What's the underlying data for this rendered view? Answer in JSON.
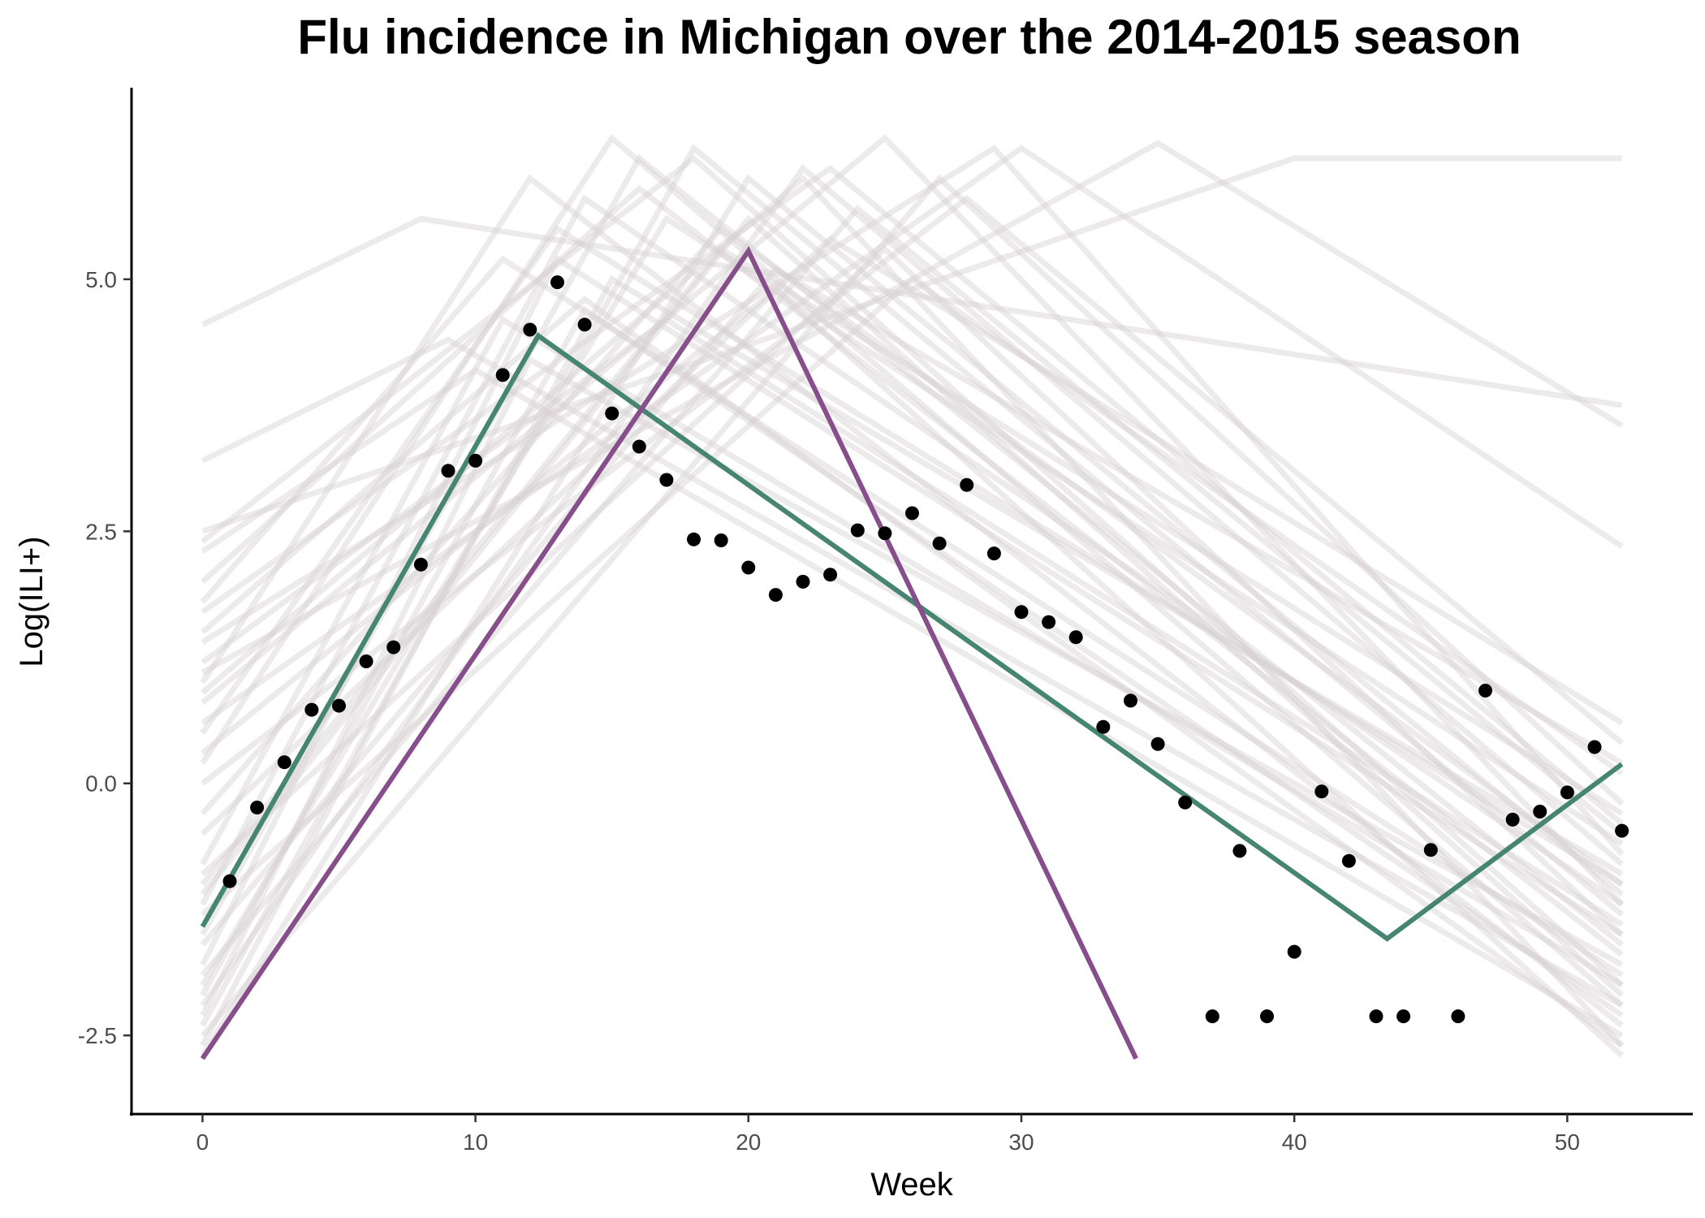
{
  "chart_data": {
    "type": "line",
    "title": "Flu incidence in Michigan over the 2014-2015 season",
    "xlabel": "Week",
    "ylabel": "Log(ILI+)",
    "xlim": [
      -2.6,
      54.6
    ],
    "ylim": [
      -3.28,
      6.9
    ],
    "x_ticks": [
      0,
      10,
      20,
      30,
      40,
      50
    ],
    "x_tick_labels": [
      "0",
      "10",
      "20",
      "30",
      "40",
      "50"
    ],
    "y_ticks": [
      -2.5,
      0,
      2.5,
      5
    ],
    "y_tick_labels": [
      "-2.5",
      "0.0",
      "2.5",
      "5.0"
    ],
    "grid": false,
    "legend": "none",
    "colors": {
      "observed": "#000000",
      "green_fit": "#458571",
      "purple_fit": "#874e8c",
      "samples": "#d8d0d3"
    },
    "observed": {
      "x": [
        1,
        2,
        3,
        4,
        5,
        6,
        7,
        8,
        9,
        10,
        11,
        12,
        13,
        14,
        15,
        16,
        17,
        18,
        19,
        20,
        21,
        22,
        23,
        24,
        25,
        26,
        27,
        28,
        29,
        30,
        31,
        32,
        33,
        34,
        35,
        36,
        37,
        38,
        39,
        40,
        41,
        42,
        43,
        44,
        45,
        46,
        47,
        48,
        49,
        50,
        51,
        52
      ],
      "y": [
        -0.97,
        -0.24,
        0.21,
        0.73,
        0.77,
        1.21,
        1.35,
        2.17,
        3.1,
        3.2,
        4.05,
        4.5,
        4.97,
        4.55,
        3.67,
        3.34,
        3.01,
        2.42,
        2.41,
        2.14,
        1.87,
        2.0,
        2.07,
        2.51,
        2.48,
        2.68,
        2.38,
        2.96,
        2.28,
        1.7,
        1.6,
        1.45,
        0.56,
        0.82,
        0.39,
        -0.19,
        -2.31,
        -0.67,
        -2.31,
        -1.67,
        -0.08,
        -0.77,
        -2.31,
        -2.31,
        -0.66,
        -2.31,
        0.92,
        -0.36,
        -0.28,
        -0.09,
        0.36,
        -0.47
      ]
    },
    "series": [
      {
        "x": [
          0,
          12.3,
          43.4,
          52
        ],
        "y": [
          -1.42,
          4.44,
          -1.54,
          0.19
        ]
      },
      {
        "x": [
          0,
          20,
          34.2
        ],
        "y": [
          -2.73,
          5.28,
          -2.73
        ]
      }
    ],
    "sample_curves": [
      {
        "x": [
          0,
          13,
          52
        ],
        "y": [
          -1.8,
          5.2,
          -1.5
        ]
      },
      {
        "x": [
          0,
          12,
          52
        ],
        "y": [
          -2.3,
          4.2,
          -1.8
        ]
      },
      {
        "x": [
          0,
          14,
          52
        ],
        "y": [
          -1.2,
          5.8,
          -1.2
        ]
      },
      {
        "x": [
          0,
          11,
          52
        ],
        "y": [
          -0.8,
          4.6,
          -2.0
        ]
      },
      {
        "x": [
          0,
          15,
          52
        ],
        "y": [
          -2.6,
          5.0,
          -0.9
        ]
      },
      {
        "x": [
          0,
          16,
          52
        ],
        "y": [
          -1.5,
          6.2,
          -1.6
        ]
      },
      {
        "x": [
          0,
          13,
          52
        ],
        "y": [
          0.5,
          5.5,
          -1.0
        ]
      },
      {
        "x": [
          0,
          12,
          52
        ],
        "y": [
          1.0,
          6.0,
          -2.4
        ]
      },
      {
        "x": [
          0,
          17,
          52
        ],
        "y": [
          -2.0,
          5.6,
          -0.6
        ]
      },
      {
        "x": [
          0,
          18,
          52
        ],
        "y": [
          -2.4,
          6.3,
          -1.3
        ]
      },
      {
        "x": [
          0,
          14,
          52
        ],
        "y": [
          1.5,
          4.8,
          -2.6
        ]
      },
      {
        "x": [
          0,
          19,
          52
        ],
        "y": [
          -1.0,
          5.3,
          -0.3
        ]
      },
      {
        "x": [
          0,
          20,
          52
        ],
        "y": [
          -2.7,
          6.0,
          -1.1
        ]
      },
      {
        "x": [
          0,
          15,
          52
        ],
        "y": [
          0.2,
          6.4,
          -2.2
        ]
      },
      {
        "x": [
          0,
          21,
          52
        ],
        "y": [
          -1.6,
          5.1,
          0.2
        ]
      },
      {
        "x": [
          0,
          16,
          52
        ],
        "y": [
          2.0,
          5.9,
          -1.7
        ]
      },
      {
        "x": [
          0,
          22,
          52
        ],
        "y": [
          -2.2,
          6.1,
          -0.8
        ]
      },
      {
        "x": [
          0,
          17,
          52
        ],
        "y": [
          1.2,
          4.6,
          -1.4
        ]
      },
      {
        "x": [
          0,
          23,
          52
        ],
        "y": [
          -0.5,
          5.4,
          0.6
        ]
      },
      {
        "x": [
          0,
          18,
          52
        ],
        "y": [
          2.4,
          6.2,
          -2.0
        ]
      },
      {
        "x": [
          0,
          24,
          52
        ],
        "y": [
          -1.9,
          5.7,
          -0.5
        ]
      },
      {
        "x": [
          0,
          25,
          52
        ],
        "y": [
          0.8,
          6.4,
          -1.2
        ]
      },
      {
        "x": [
          0,
          26,
          52
        ],
        "y": [
          -1.3,
          5.0,
          0.1
        ]
      },
      {
        "x": [
          0,
          27,
          52
        ],
        "y": [
          -2.5,
          6.0,
          -0.2
        ]
      },
      {
        "x": [
          0,
          11,
          52
        ],
        "y": [
          1.8,
          5.2,
          -1.9
        ]
      },
      {
        "x": [
          0,
          10,
          52
        ],
        "y": [
          2.3,
          4.1,
          -2.5
        ]
      },
      {
        "x": [
          0,
          28,
          52
        ],
        "y": [
          0.0,
          5.8,
          0.4
        ]
      },
      {
        "x": [
          0,
          29,
          52
        ],
        "y": [
          1.4,
          6.3,
          -0.7
        ]
      },
      {
        "x": [
          0,
          9,
          52
        ],
        "y": [
          3.2,
          4.4,
          -2.2
        ]
      },
      {
        "x": [
          0,
          8,
          52
        ],
        "y": [
          4.55,
          5.6,
          3.75
        ]
      },
      {
        "x": [
          0,
          30,
          52
        ],
        "y": [
          0.6,
          6.3,
          2.35
        ]
      },
      {
        "x": [
          0,
          35,
          52
        ],
        "y": [
          1.1,
          6.35,
          3.55
        ]
      },
      {
        "x": [
          0,
          40,
          52
        ],
        "y": [
          2.5,
          6.2,
          6.2
        ]
      },
      {
        "x": [
          0,
          19,
          52
        ],
        "y": [
          -0.3,
          5.5,
          -1.0
        ]
      },
      {
        "x": [
          0,
          21,
          52
        ],
        "y": [
          0.3,
          4.9,
          -2.7
        ]
      },
      {
        "x": [
          0,
          14,
          52
        ],
        "y": [
          -2.1,
          4.7,
          -2.3
        ]
      },
      {
        "x": [
          0,
          23,
          52
        ],
        "y": [
          1.7,
          6.1,
          -0.4
        ]
      },
      {
        "x": [
          0,
          20,
          52
        ],
        "y": [
          -1.1,
          5.6,
          -2.1
        ]
      },
      {
        "x": [
          0,
          25,
          52
        ],
        "y": [
          -0.9,
          5.3,
          -1.5
        ]
      },
      {
        "x": [
          0,
          22,
          52
        ],
        "y": [
          0.9,
          6.0,
          -2.6
        ]
      }
    ]
  }
}
